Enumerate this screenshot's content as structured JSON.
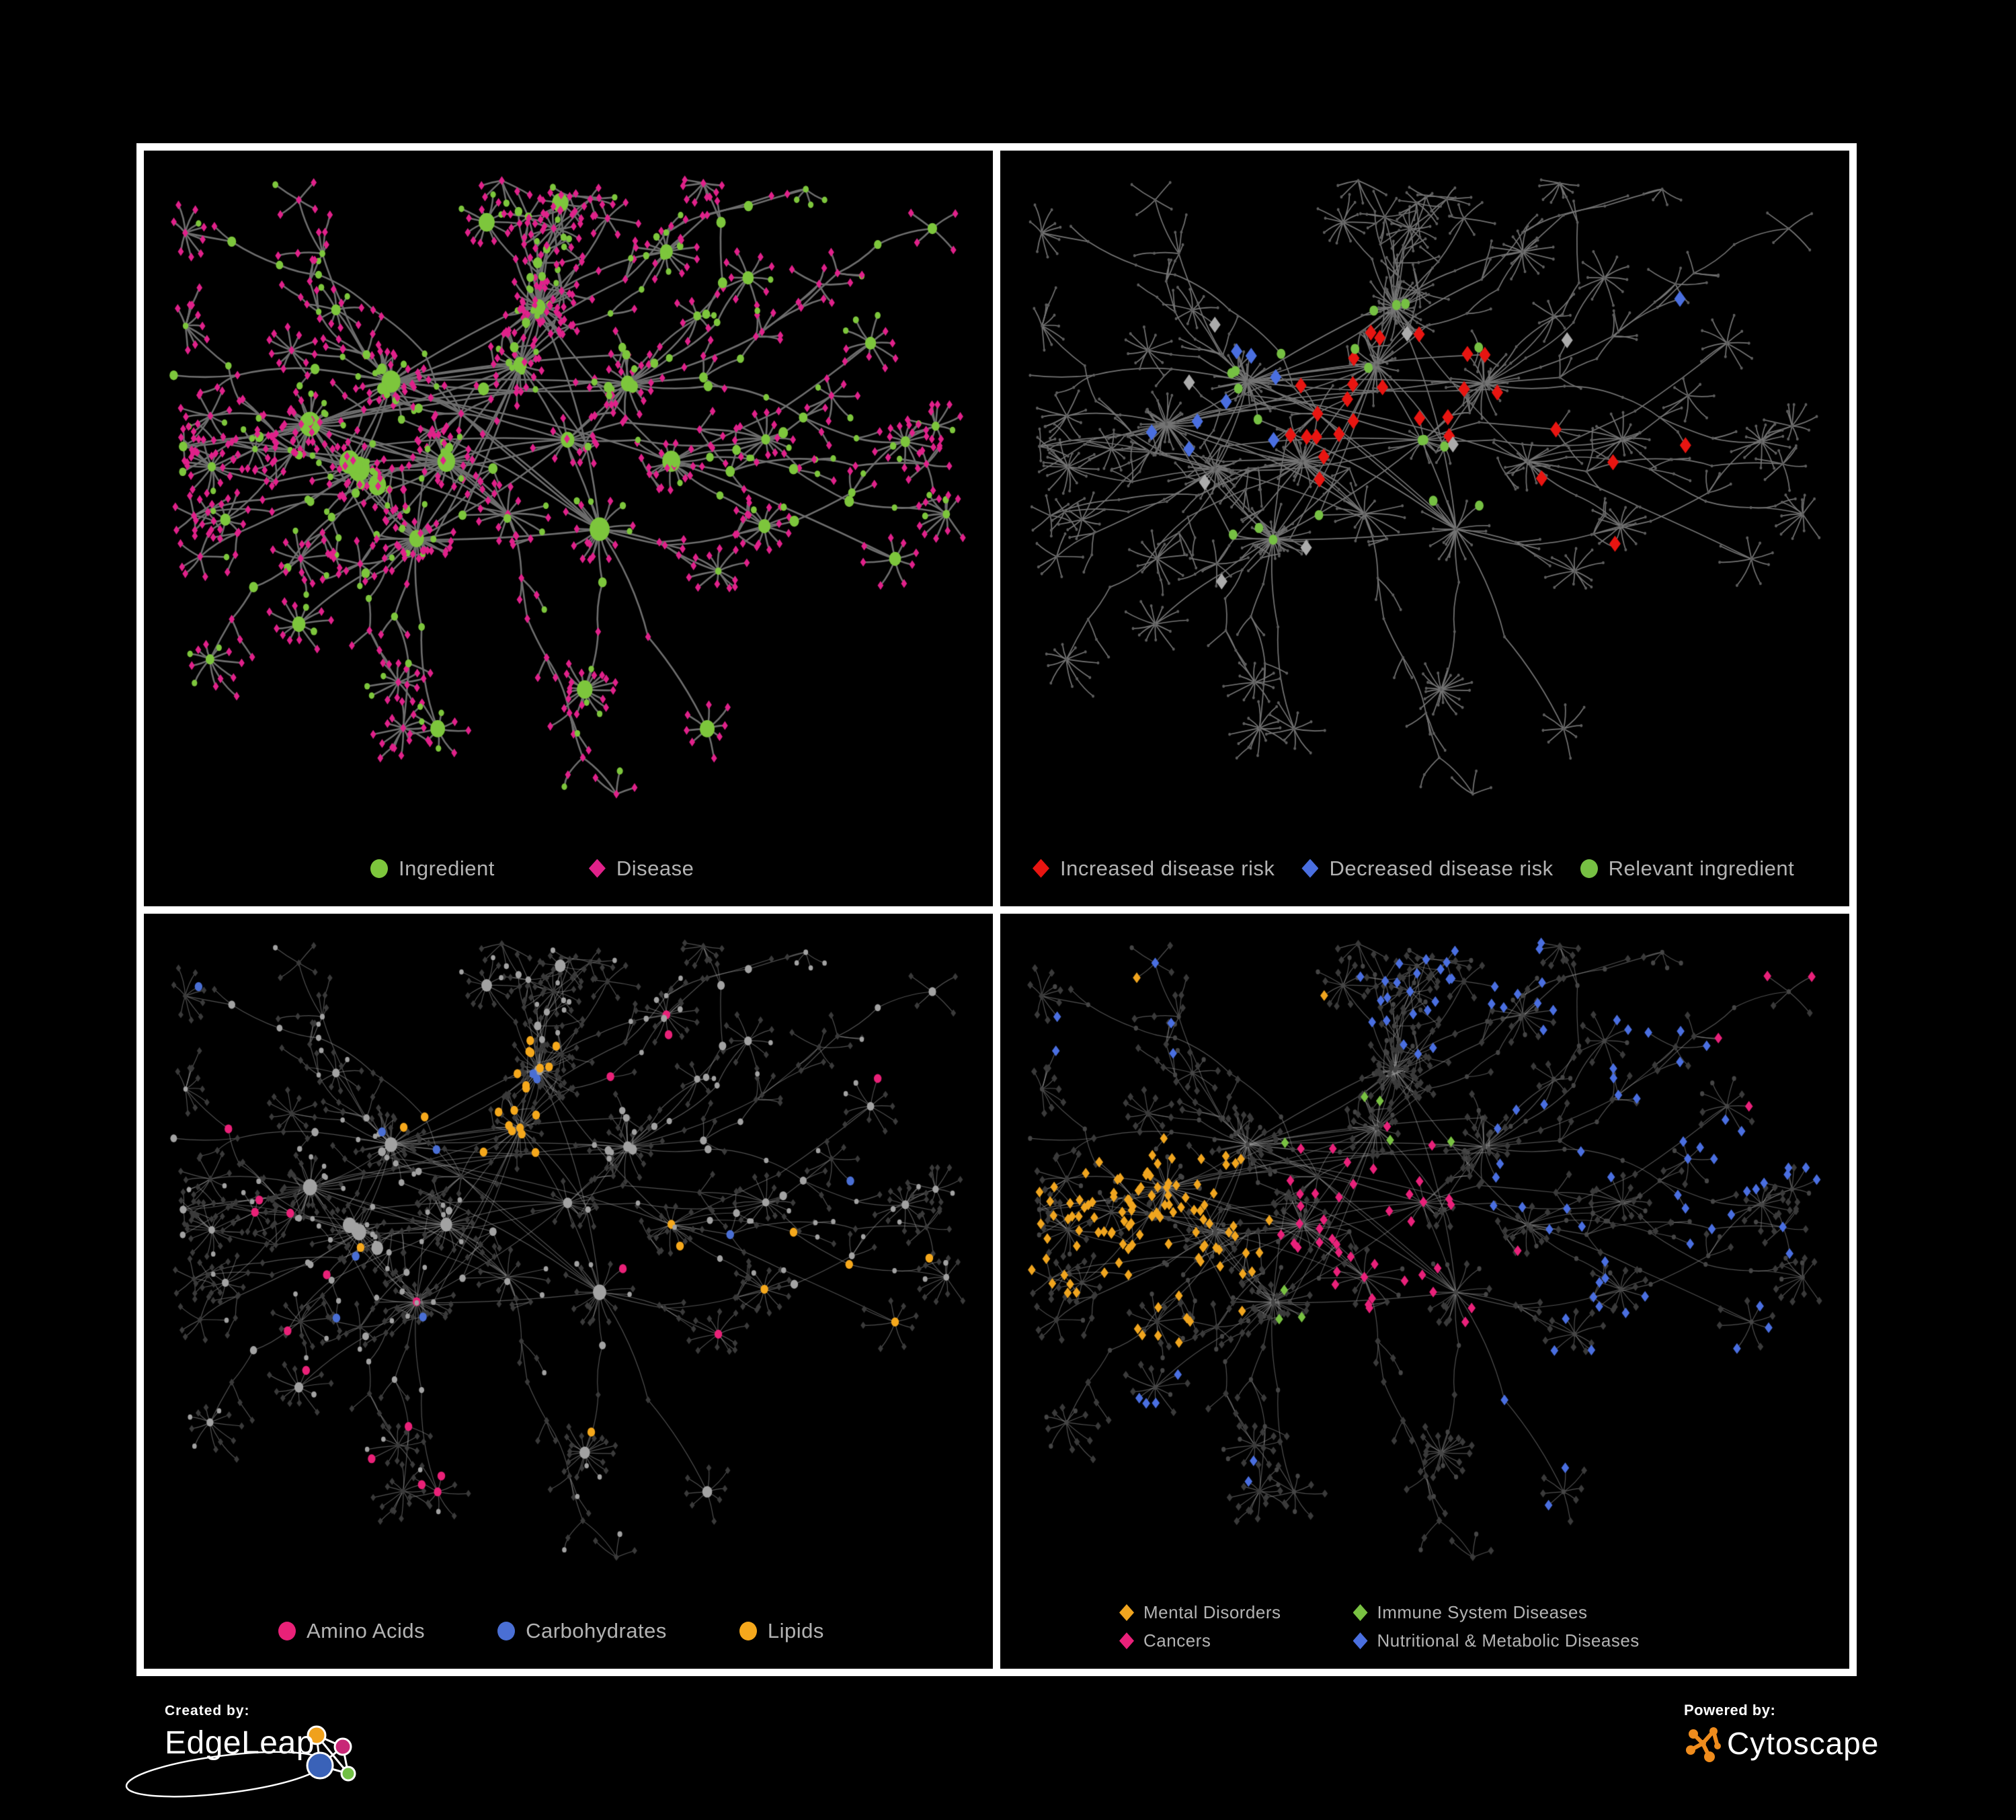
{
  "panels": [
    {
      "id": "ingredient-disease",
      "legend": [
        {
          "label": "Ingredient",
          "color": "#7dc63c",
          "shape": "circle"
        },
        {
          "label": "Disease",
          "color": "#e0218a",
          "shape": "diamond"
        }
      ]
    },
    {
      "id": "disease-risk",
      "legend": [
        {
          "label": "Increased disease risk",
          "color": "#e81511",
          "shape": "diamond"
        },
        {
          "label": "Decreased disease risk",
          "color": "#4a6fe0",
          "shape": "diamond"
        },
        {
          "label": "Relevant ingredient",
          "color": "#76c043",
          "shape": "circle"
        }
      ]
    },
    {
      "id": "nutrient-classes",
      "legend": [
        {
          "label": "Amino Acids",
          "color": "#e92178",
          "shape": "circle"
        },
        {
          "label": "Carbohydrates",
          "color": "#4a6fd4",
          "shape": "circle"
        },
        {
          "label": "Lipids",
          "color": "#f5a81c",
          "shape": "circle"
        }
      ]
    },
    {
      "id": "disease-classes",
      "legend": [
        {
          "label": "Mental Disorders",
          "color": "#f0a51f",
          "shape": "diamond"
        },
        {
          "label": "Immune System Diseases",
          "color": "#79c142",
          "shape": "diamond"
        },
        {
          "label": "Cancers",
          "color": "#e9217a",
          "shape": "diamond"
        },
        {
          "label": "Nutritional & Metabolic Diseases",
          "color": "#4a6fe0",
          "shape": "diamond"
        }
      ]
    }
  ],
  "palette": {
    "edge_p0": "#6e6e6e",
    "edge_p1": "#757575",
    "edge_p23": "rgba(160,160,160,0.5)",
    "dot_p1": "#5d5d5d",
    "gray_diamond_p1": "#ababab",
    "gray_circle_p2": "#a2a2a2",
    "dark_diamond": "#3a3a3a",
    "dark_circle": "#454545"
  },
  "footer": {
    "created_by": "Created by:",
    "brand_left": "EdgeLeap",
    "powered_by": "Powered by:",
    "brand_right": "Cytoscape"
  }
}
